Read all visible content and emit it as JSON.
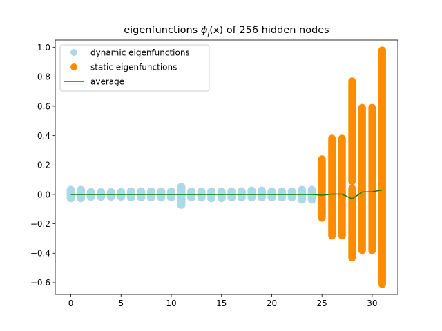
{
  "chart_data": {
    "type": "scatter",
    "title_prefix": "eigenfunctions ",
    "title_symbol": "ϕ",
    "title_subscript": "j",
    "title_arg": "(x)",
    "title_suffix": " of 256 hidden nodes",
    "xlim": [
      -1.55,
      32.55
    ],
    "ylim": [
      -0.68,
      1.05
    ],
    "x_ticks": [
      0,
      5,
      10,
      15,
      20,
      25,
      30
    ],
    "x_tick_labels": [
      "0",
      "5",
      "10",
      "15",
      "20",
      "25",
      "30"
    ],
    "y_ticks": [
      -0.6,
      -0.4,
      -0.2,
      0.0,
      0.2,
      0.4,
      0.6,
      0.8,
      1.0
    ],
    "y_tick_labels": [
      "−0.6",
      "−0.4",
      "−0.2",
      "0.0",
      "0.2",
      "0.4",
      "0.6",
      "0.8",
      "1.0"
    ],
    "grid": false,
    "legend_position": "upper-left",
    "colors": {
      "dynamic": "#add8e6",
      "static": "#ff8c00",
      "average": "#008000"
    },
    "series": [
      {
        "name": "dynamic eigenfunctions",
        "kind": "scatter",
        "ranges": [
          {
            "x": 0,
            "min": -0.025,
            "max": 0.03
          },
          {
            "x": 1,
            "min": -0.025,
            "max": 0.03
          },
          {
            "x": 2,
            "min": -0.015,
            "max": 0.015
          },
          {
            "x": 3,
            "min": -0.015,
            "max": 0.015
          },
          {
            "x": 4,
            "min": -0.015,
            "max": 0.015
          },
          {
            "x": 5,
            "min": -0.015,
            "max": 0.015
          },
          {
            "x": 6,
            "min": -0.02,
            "max": 0.02
          },
          {
            "x": 7,
            "min": -0.02,
            "max": 0.02
          },
          {
            "x": 8,
            "min": -0.02,
            "max": 0.02
          },
          {
            "x": 9,
            "min": -0.02,
            "max": 0.02
          },
          {
            "x": 10,
            "min": -0.02,
            "max": 0.02
          },
          {
            "x": 11,
            "min": -0.07,
            "max": 0.05
          },
          {
            "x": 12,
            "min": -0.02,
            "max": 0.02
          },
          {
            "x": 13,
            "min": -0.02,
            "max": 0.02
          },
          {
            "x": 14,
            "min": -0.025,
            "max": 0.02
          },
          {
            "x": 15,
            "min": -0.025,
            "max": 0.02
          },
          {
            "x": 16,
            "min": -0.02,
            "max": 0.02
          },
          {
            "x": 17,
            "min": -0.02,
            "max": 0.02
          },
          {
            "x": 18,
            "min": -0.02,
            "max": 0.025
          },
          {
            "x": 19,
            "min": -0.02,
            "max": 0.025
          },
          {
            "x": 20,
            "min": -0.02,
            "max": 0.02
          },
          {
            "x": 21,
            "min": -0.02,
            "max": 0.02
          },
          {
            "x": 22,
            "min": -0.02,
            "max": 0.02
          },
          {
            "x": 23,
            "min": -0.035,
            "max": 0.03
          },
          {
            "x": 24,
            "min": -0.035,
            "max": 0.03
          }
        ]
      },
      {
        "name": "static eigenfunctions",
        "kind": "scatter",
        "segments": [
          {
            "x": 25,
            "min": -0.16,
            "max": 0.24
          },
          {
            "x": 26,
            "min": -0.28,
            "max": 0.38
          },
          {
            "x": 27,
            "min": -0.28,
            "max": 0.38
          },
          {
            "x": 28,
            "min": -0.43,
            "max": 0.04
          },
          {
            "x": 28,
            "min": 0.09,
            "max": 0.77
          },
          {
            "x": 29,
            "min": -0.38,
            "max": 0.59
          },
          {
            "x": 30,
            "min": -0.38,
            "max": 0.59
          },
          {
            "x": 31,
            "min": -0.61,
            "max": 0.98
          }
        ]
      },
      {
        "name": "average",
        "kind": "line",
        "x": [
          0,
          1,
          2,
          3,
          4,
          5,
          6,
          7,
          8,
          9,
          10,
          11,
          12,
          13,
          14,
          15,
          16,
          17,
          18,
          19,
          20,
          21,
          22,
          23,
          24,
          25,
          26,
          27,
          28,
          29,
          30,
          31
        ],
        "y": [
          0,
          0,
          0,
          0,
          0,
          0,
          0,
          0,
          0,
          0,
          0,
          0,
          0,
          0,
          0,
          0,
          0,
          0,
          0,
          0,
          0,
          0,
          0,
          0,
          0,
          -0.005,
          0.003,
          0.002,
          -0.03,
          0.017,
          0.018,
          0.03
        ]
      }
    ]
  }
}
